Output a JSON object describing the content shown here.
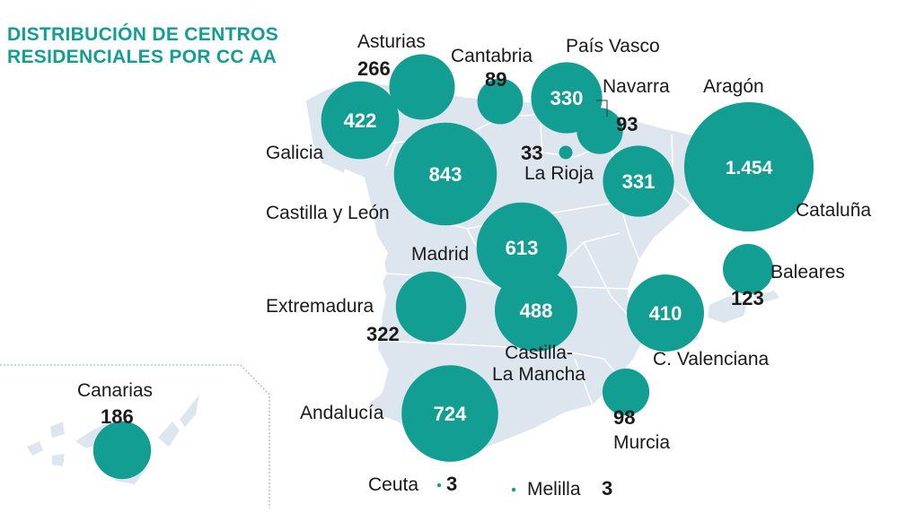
{
  "title": {
    "line1": "DISTRIBUCIÓN DE CENTROS",
    "line2": "RESIDENCIALES POR CC AA"
  },
  "colors": {
    "accent": "#139e93",
    "land": "#dde5ef",
    "border": "#ffffff",
    "label": "#1a1a1a"
  },
  "regions": [
    {
      "id": "asturias",
      "name": "Asturias",
      "value": 266,
      "value_text": "266"
    },
    {
      "id": "cantabria",
      "name": "Cantabria",
      "value": 89,
      "value_text": "89"
    },
    {
      "id": "pais-vasco",
      "name": "País Vasco",
      "value": 330,
      "value_text": "330"
    },
    {
      "id": "navarra",
      "name": "Navarra",
      "value": 93,
      "value_text": "93"
    },
    {
      "id": "aragon",
      "name": "Aragón",
      "value": 331,
      "value_text": "331"
    },
    {
      "id": "galicia",
      "name": "Galicia",
      "value": 422,
      "value_text": "422"
    },
    {
      "id": "castilla-leon",
      "name": "Castilla y León",
      "value": 843,
      "value_text": "843"
    },
    {
      "id": "la-rioja",
      "name": "La Rioja",
      "value": 33,
      "value_text": "33"
    },
    {
      "id": "cataluna",
      "name": "Cataluña",
      "value": 1454,
      "value_text": "1.454"
    },
    {
      "id": "madrid",
      "name": "Madrid",
      "value": 613,
      "value_text": "613"
    },
    {
      "id": "baleares",
      "name": "Baleares",
      "value": 123,
      "value_text": "123"
    },
    {
      "id": "extremadura",
      "name": "Extremadura",
      "value": 322,
      "value_text": "322"
    },
    {
      "id": "castilla-la-mancha",
      "name": "Castilla-\nLa Mancha",
      "value": 488,
      "value_text": "488"
    },
    {
      "id": "valenciana",
      "name": "C. Valenciana",
      "value": 410,
      "value_text": "410"
    },
    {
      "id": "murcia",
      "name": "Murcia",
      "value": 98,
      "value_text": "98"
    },
    {
      "id": "andalucia",
      "name": "Andalucía",
      "value": 724,
      "value_text": "724"
    },
    {
      "id": "canarias",
      "name": "Canarias",
      "value": 186,
      "value_text": "186"
    },
    {
      "id": "ceuta",
      "name": "Ceuta",
      "value": 3,
      "value_text": "3"
    },
    {
      "id": "melilla",
      "name": "Melilla",
      "value": 3,
      "value_text": "3"
    }
  ]
}
